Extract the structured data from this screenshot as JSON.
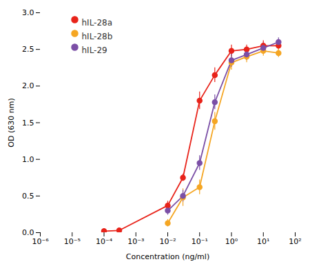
{
  "chart_data": {
    "type": "line",
    "xlabel": "Concentration (ng/ml)",
    "ylabel": "OD (630 nm)",
    "log": "x",
    "xlim": [
      1e-06,
      100
    ],
    "xticks": [
      {
        "value": 1e-06,
        "label": "10⁻⁶"
      },
      {
        "value": 1e-05,
        "label": "10⁻⁵"
      },
      {
        "value": 0.0001,
        "label": "10⁻⁴"
      },
      {
        "value": 0.001,
        "label": "10⁻³"
      },
      {
        "value": 0.01,
        "label": "10⁻²"
      },
      {
        "value": 0.1,
        "label": "10⁻¹"
      },
      {
        "value": 1,
        "label": "10⁰"
      },
      {
        "value": 10,
        "label": "10¹"
      },
      {
        "value": 100,
        "label": "10²"
      }
    ],
    "ylim": [
      0,
      3.0
    ],
    "yticks": [
      {
        "value": 0,
        "label": "0.0"
      },
      0.5,
      {
        "value": 1,
        "label": "1.0"
      },
      1.5,
      {
        "value": 2,
        "label": "2.0"
      },
      2.5,
      {
        "value": 3,
        "label": "3.0"
      }
    ],
    "grid": false,
    "legend": "upper left",
    "marker": "circle",
    "series": [
      {
        "name": "hIL-28a",
        "color": "#e8231a",
        "x": [
          0.0001,
          0.0003,
          0.01,
          0.03,
          0.1,
          0.3,
          1.0,
          3.0,
          10.0,
          30.0
        ],
        "values": [
          0.02,
          0.03,
          0.37,
          0.75,
          1.8,
          2.15,
          2.48,
          2.5,
          2.55,
          2.55
        ],
        "yerr": [
          0.01,
          0.01,
          0.06,
          0.05,
          0.12,
          0.1,
          0.08,
          0.06,
          0.07,
          0.06
        ]
      },
      {
        "name": "hIL-28b",
        "color": "#f5a623",
        "x": [
          0.01,
          0.03,
          0.1,
          0.3,
          1.0,
          3.0,
          10.0,
          30.0
        ],
        "values": [
          0.13,
          0.48,
          0.62,
          1.52,
          2.32,
          2.4,
          2.48,
          2.45
        ],
        "yerr": [
          0.05,
          0.12,
          0.1,
          0.12,
          0.1,
          0.08,
          0.07,
          0.06
        ]
      },
      {
        "name": "hIL-29",
        "color": "#7b4fa6",
        "x": [
          0.01,
          0.03,
          0.1,
          0.3,
          1.0,
          3.0,
          10.0,
          30.0
        ],
        "values": [
          0.3,
          0.5,
          0.95,
          1.78,
          2.35,
          2.43,
          2.52,
          2.6
        ],
        "yerr": [
          0.06,
          0.08,
          0.1,
          0.1,
          0.09,
          0.08,
          0.07,
          0.06
        ]
      }
    ]
  }
}
